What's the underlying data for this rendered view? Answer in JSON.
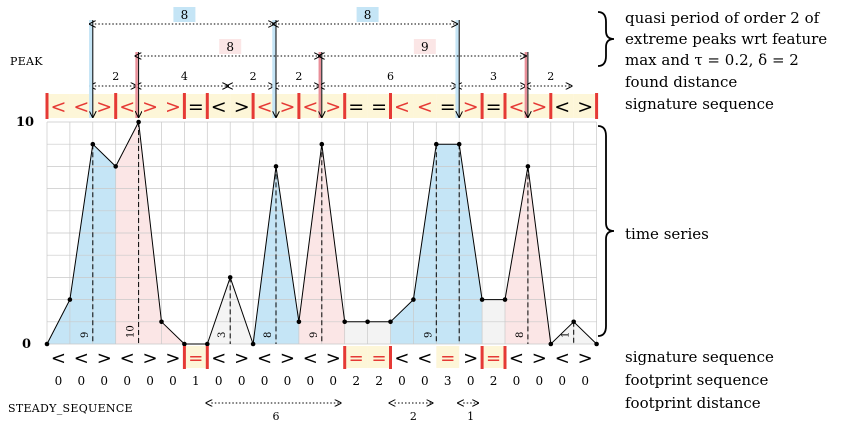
{
  "labels": {
    "peak": "PEAK",
    "steady": "STEADY_SEQUENCE",
    "y_max": "10",
    "y_min": "0"
  },
  "captions": {
    "quasi_period_line1": "quasi period of order 2 of",
    "quasi_period_line2": "extreme peaks wrt feature",
    "quasi_period_line3": "max and τ = 0.2, δ = 2",
    "found_distance": "found distance",
    "signature_top": "signature sequence",
    "time_series": "time series",
    "signature_bottom": "signature sequence",
    "footprint_sequence": "footprint sequence",
    "footprint_distance": "footprint distance"
  },
  "series": [
    0,
    2,
    9,
    8,
    10,
    1,
    0,
    0,
    3,
    0,
    8,
    1,
    9,
    1,
    1,
    1,
    2,
    9,
    9,
    2,
    2,
    8,
    0,
    1,
    0
  ],
  "signature": [
    "<",
    "<",
    ">",
    "<",
    ">",
    ">",
    "=",
    "<",
    ">",
    "<",
    ">",
    "<",
    ">",
    "=",
    "=",
    "<",
    "<",
    "=",
    ">",
    "=",
    "<",
    ">",
    "<",
    ">"
  ],
  "footprint": [
    "0",
    "0",
    "0",
    "0",
    "0",
    "0",
    "1",
    "0",
    "0",
    "0",
    "0",
    "0",
    "0",
    "2",
    "2",
    "0",
    "0",
    "3",
    "0",
    "2",
    "0",
    "0",
    "0",
    "0"
  ],
  "peaks": [
    {
      "max_value": "9",
      "color": "blue"
    },
    {
      "max_value": "10",
      "color": "pink"
    },
    {
      "max_value": "3",
      "color": "none"
    },
    {
      "max_value": "8",
      "color": "blue"
    },
    {
      "max_value": "9",
      "color": "pink"
    },
    {
      "max_value": "9",
      "color": "blue"
    },
    {
      "max_value": "8",
      "color": "pink"
    },
    {
      "max_value": "1",
      "color": "none"
    }
  ],
  "found_distances": [
    "2",
    "4",
    "2",
    "2",
    "6",
    "3",
    "2"
  ],
  "quasi_period_distances": {
    "blue": [
      "8",
      "8"
    ],
    "pink": [
      "8",
      "9"
    ]
  },
  "steady_distances": [
    "6",
    "2",
    "1"
  ],
  "colors": {
    "blue": "#c5e5f6",
    "pink": "#fbe6e6",
    "yellow": "#fdf6d8",
    "red": "#e53935",
    "blue_dark": "#2a6db5",
    "pink_dark": "#b34d5b"
  }
}
